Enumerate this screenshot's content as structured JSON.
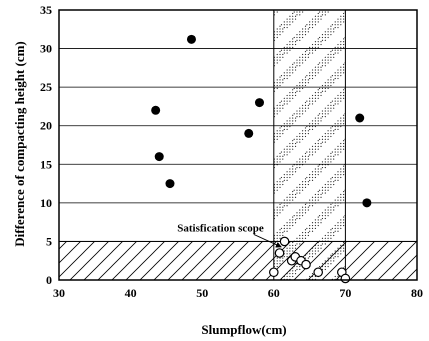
{
  "chart_data": {
    "type": "scatter",
    "title": "",
    "xlabel": "Slumpflow(cm)",
    "ylabel": "Difference of compacting height (cm)",
    "xlim": [
      30,
      80
    ],
    "ylim": [
      0,
      35
    ],
    "xticks": [
      30,
      40,
      50,
      60,
      70,
      80
    ],
    "yticks": [
      0,
      5,
      10,
      15,
      20,
      25,
      30,
      35
    ],
    "grid": "horizontal",
    "series": [
      {
        "marker": "filled-circle",
        "points": [
          {
            "x": 48.5,
            "y": 31.2
          },
          {
            "x": 43.5,
            "y": 22.0
          },
          {
            "x": 44.0,
            "y": 16.0
          },
          {
            "x": 45.5,
            "y": 12.5
          },
          {
            "x": 56.5,
            "y": 19.0
          },
          {
            "x": 58.0,
            "y": 23.0
          },
          {
            "x": 72.0,
            "y": 21.0
          },
          {
            "x": 73.0,
            "y": 10.0
          }
        ]
      },
      {
        "marker": "open-circle",
        "points": [
          {
            "x": 60.0,
            "y": 1.0
          },
          {
            "x": 60.8,
            "y": 3.5
          },
          {
            "x": 61.5,
            "y": 5.0
          },
          {
            "x": 62.5,
            "y": 2.5
          },
          {
            "x": 63.0,
            "y": 3.0
          },
          {
            "x": 63.8,
            "y": 2.5
          },
          {
            "x": 64.5,
            "y": 2.0
          },
          {
            "x": 66.2,
            "y": 1.0
          },
          {
            "x": 69.5,
            "y": 1.0
          },
          {
            "x": 70.0,
            "y": 0.2
          }
        ]
      }
    ],
    "shaded_regions": [
      {
        "x": [
          60,
          70
        ],
        "y": [
          0,
          35
        ],
        "pattern": "crosshatch"
      },
      {
        "x": [
          30,
          80
        ],
        "y": [
          0,
          5
        ],
        "pattern": "diagonal"
      }
    ],
    "annotations": [
      {
        "text": "Satisfication scope",
        "x": 58.6,
        "y": 6.3,
        "arrow_to": {
          "x": 61.0,
          "y": 4.3
        }
      }
    ]
  },
  "colors": {
    "axis": "#000000",
    "marker_fill": "#000000",
    "background": "#ffffff"
  }
}
